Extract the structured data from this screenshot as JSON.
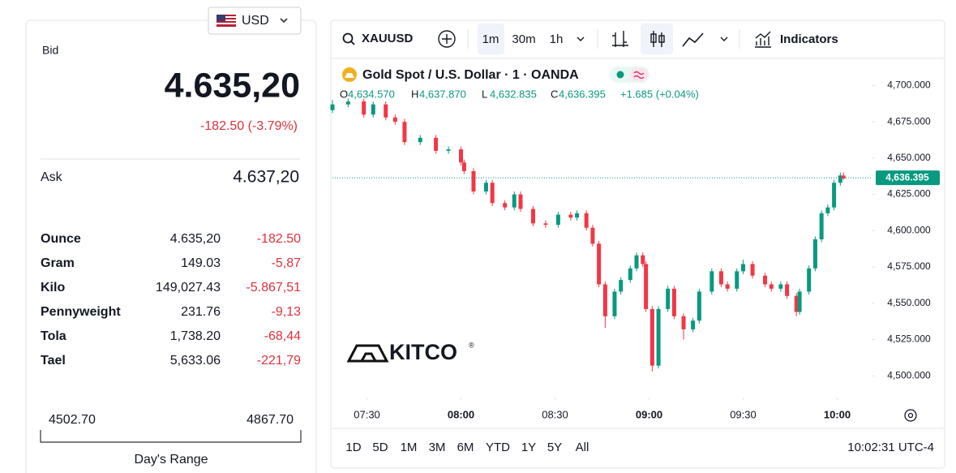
{
  "currency": "USD",
  "bid": {
    "label": "Bid",
    "value": "4.635,20",
    "change": "-182.50 (-3.79%)"
  },
  "ask": {
    "label": "Ask",
    "value": "4.637,20"
  },
  "units": [
    [
      "Ounce",
      "4.635,20",
      "-182.50"
    ],
    [
      "Gram",
      "149.03",
      "-5,87"
    ],
    [
      "Kilo",
      "149,027.43",
      "-5.867,51"
    ],
    [
      "Pennyweight",
      "231.76",
      "-9,13"
    ],
    [
      "Tola",
      "1,738.20",
      "-68,44"
    ],
    [
      "Tael",
      "5,633.06",
      "-221,79"
    ]
  ],
  "day_range": {
    "low": "4502.70",
    "high": "4867.70",
    "label": "Day's Range"
  },
  "toolbar": {
    "symbol": "XAUUSD",
    "intervals": [
      "1m",
      "30m",
      "1h"
    ],
    "indicators": "Indicators"
  },
  "ohlc": [
    {
      "label": "O",
      "value": "4,634.570"
    },
    {
      "label": "H",
      "value": "4,637.870"
    },
    {
      "label": "L",
      "value": "4,632.835"
    },
    {
      "label": "C",
      "value": "4,636.395"
    }
  ],
  "ohlc_change": "+1.685 (+0.04%)",
  "watermark": "KITCO",
  "watermark_mark": "®",
  "ranges": [
    "1D",
    "5D",
    "1M",
    "3M",
    "6M",
    "YTD",
    "1Y",
    "5Y",
    "All"
  ],
  "clock": "10:02:31 UTC-4",
  "chart_data": {
    "type": "candlestick",
    "title": "Gold Spot / U.S. Dollar · 1 · OANDA",
    "up_color": "#089981",
    "down_color": "#f23645",
    "grid": false,
    "x": [
      "07:19",
      "07:24",
      "07:29",
      "07:32",
      "07:36",
      "07:39",
      "07:42",
      "07:47",
      "07:52",
      "07:56",
      "08:00",
      "08:01",
      "08:04",
      "08:08",
      "08:10",
      "08:14",
      "08:17",
      "08:19",
      "08:23",
      "08:27",
      "08:31",
      "08:35",
      "08:37",
      "08:40",
      "08:42",
      "08:44",
      "08:46",
      "08:49",
      "08:51",
      "08:54",
      "08:56",
      "08:58",
      "08:59",
      "09:01",
      "09:03",
      "09:06",
      "09:08",
      "09:11",
      "09:14",
      "09:16",
      "09:20",
      "09:23",
      "09:25",
      "09:28",
      "09:30",
      "09:33",
      "09:37",
      "09:39",
      "09:42",
      "09:44",
      "09:47",
      "09:48",
      "09:51",
      "09:53",
      "09:55",
      "09:57",
      "09:59",
      "10:01",
      "10:02"
    ],
    "open": [
      4683,
      4687,
      4689,
      4680,
      4687,
      4678,
      4675,
      4661,
      4664,
      4655,
      4656,
      4647,
      4641,
      4627,
      4633,
      4619,
      4616,
      4625,
      4615,
      4605,
      4604,
      4611,
      4609,
      4612,
      4602,
      4591,
      4563,
      4541,
      4558,
      4566,
      4574,
      4583,
      4577,
      4546,
      4507,
      4546,
      4560,
      4541,
      4532,
      4538,
      4558,
      4572,
      4563,
      4560,
      4572,
      4577,
      4569,
      4563,
      4560,
      4563,
      4555,
      4544,
      4558,
      4574,
      4594,
      4612,
      4616,
      4633,
      4638
    ],
    "high": [
      4690,
      4691,
      4691,
      4689,
      4689,
      4680,
      4677,
      4666,
      4666,
      4658,
      4658,
      4649,
      4643,
      4635,
      4635,
      4621,
      4627,
      4627,
      4617,
      4607,
      4613,
      4613,
      4614,
      4614,
      4604,
      4593,
      4565,
      4560,
      4568,
      4576,
      4585,
      4585,
      4579,
      4548,
      4548,
      4562,
      4562,
      4543,
      4540,
      4560,
      4574,
      4574,
      4565,
      4574,
      4580,
      4579,
      4571,
      4565,
      4565,
      4565,
      4557,
      4560,
      4576,
      4596,
      4614,
      4618,
      4635,
      4640,
      4640
    ],
    "low": [
      4681,
      4685,
      4678,
      4678,
      4676,
      4673,
      4659,
      4659,
      4653,
      4653,
      4645,
      4639,
      4625,
      4625,
      4617,
      4614,
      4614,
      4613,
      4603,
      4602,
      4602,
      4607,
      4607,
      4600,
      4589,
      4561,
      4533,
      4539,
      4556,
      4564,
      4572,
      4575,
      4544,
      4503,
      4505,
      4544,
      4539,
      4525,
      4530,
      4536,
      4556,
      4561,
      4558,
      4558,
      4570,
      4567,
      4561,
      4558,
      4558,
      4553,
      4541,
      4542,
      4556,
      4572,
      4592,
      4610,
      4614,
      4631,
      4635
    ],
    "close": [
      4687,
      4689,
      4680,
      4687,
      4678,
      4675,
      4661,
      4664,
      4655,
      4656,
      4647,
      4641,
      4627,
      4633,
      4619,
      4616,
      4625,
      4615,
      4605,
      4604,
      4611,
      4609,
      4612,
      4602,
      4591,
      4563,
      4541,
      4558,
      4566,
      4574,
      4583,
      4577,
      4546,
      4507,
      4546,
      4560,
      4541,
      4532,
      4538,
      4558,
      4572,
      4563,
      4560,
      4572,
      4577,
      4569,
      4563,
      4560,
      4563,
      4555,
      4544,
      4558,
      4574,
      4594,
      4612,
      4616,
      4633,
      4638,
      4636
    ],
    "xlim": [
      "07:19",
      "10:11"
    ],
    "xticks": [
      "07:30",
      "08:00",
      "08:30",
      "09:00",
      "09:30",
      "10:00"
    ],
    "ylim": [
      4485,
      4717
    ],
    "yticks": [
      {
        "value": 4500,
        "label": "4,500.000"
      },
      {
        "value": 4525,
        "label": "4,525.000"
      },
      {
        "value": 4550,
        "label": "4,550.000"
      },
      {
        "value": 4575,
        "label": "4,575.000"
      },
      {
        "value": 4600,
        "label": "4,600.000"
      },
      {
        "value": 4625,
        "label": "4,625.000"
      },
      {
        "value": 4650,
        "label": "4,650.000"
      },
      {
        "value": 4675,
        "label": "4,675.000"
      },
      {
        "value": 4700,
        "label": "4,700.000"
      }
    ],
    "last_price": {
      "value": 4636.395,
      "label": "4,636.395"
    }
  }
}
